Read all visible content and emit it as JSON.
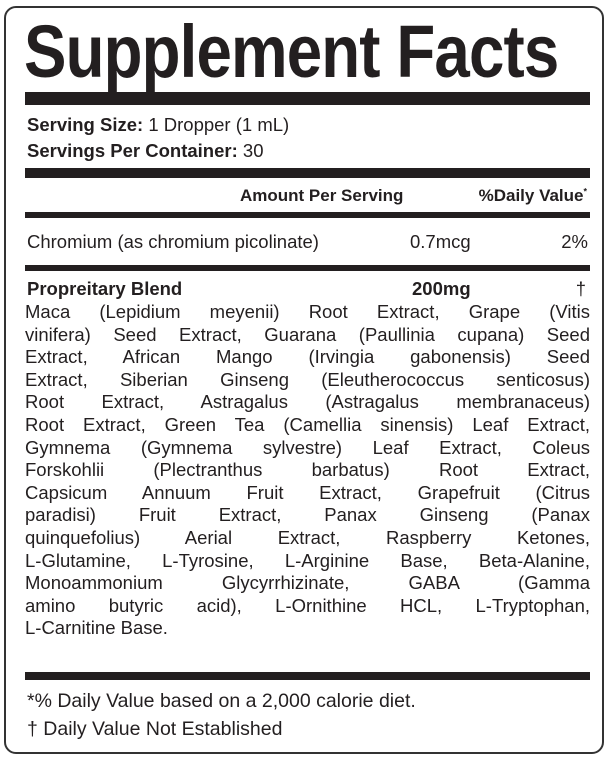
{
  "title": "Supplement Facts",
  "serving": {
    "size_label": "Serving Size:",
    "size_value": "1 Dropper (1 mL)",
    "per_container_label": "Servings Per Container:",
    "per_container_value": "30"
  },
  "columns": {
    "amount": "Amount Per Serving",
    "daily_value": "%Daily Value",
    "daily_value_mark": "*"
  },
  "nutrients": [
    {
      "name": "Chromium (as chromium picolinate)",
      "amount": "0.7mcg",
      "dv": "2%"
    }
  ],
  "blend": {
    "name": "Propreitary Blend",
    "amount": "200mg",
    "dv": "†",
    "lines": [
      "Maca (Lepidium meyenii) Root Extract, Grape (Vitis",
      "vinifera) Seed Extract, Guarana (Paullinia cupana) Seed",
      "Extract, African Mango (Irvingia gabonensis) Seed",
      "Extract, Siberian Ginseng (Eleutherococcus senticosus)",
      "Root Extract, Astragalus (Astragalus membranaceus)",
      "Root Extract, Green Tea (Camellia sinensis) Leaf Extract,",
      "Gymnema (Gymnema sylvestre) Leaf Extract, Coleus",
      "Forskohlii (Plectranthus barbatus) Root Extract,",
      "Capsicum Annuum Fruit Extract, Grapefruit (Citrus",
      "paradisi) Fruit Extract, Panax Ginseng (Panax",
      "quinquefolius) Aerial Extract, Raspberry Ketones,",
      "L-Glutamine, L-Tyrosine, L-Arginine Base, Beta-Alanine,",
      "Monoammonium Glycyrrhizinate, GABA (Gamma",
      "amino butyric acid), L-Ornithine HCL, L-Tryptophan,",
      "L-Carnitine Base."
    ]
  },
  "footnotes": [
    "*% Daily Value based on a 2,000 calorie diet.",
    "† Daily Value Not Established"
  ]
}
